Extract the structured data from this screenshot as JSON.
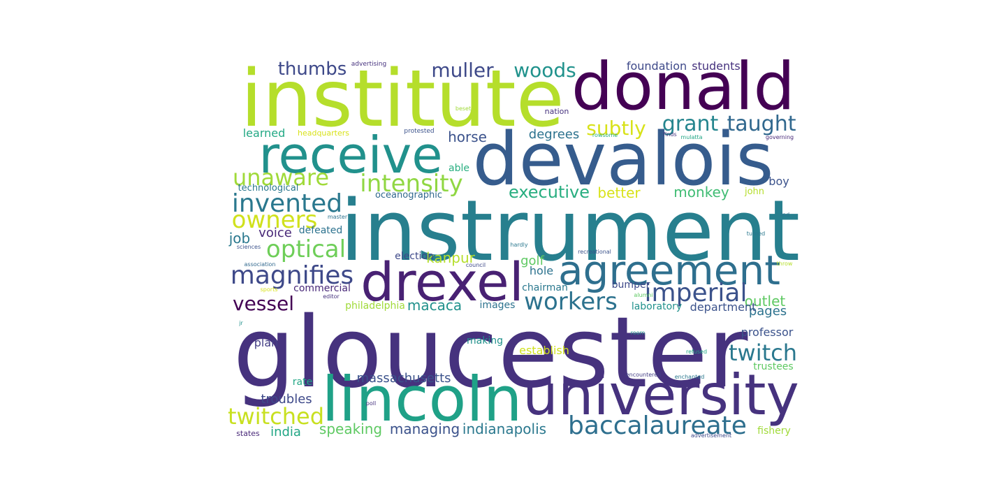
{
  "words": [
    {
      "text": "gloucester",
      "weight": 1.0,
      "color": "#46327e"
    },
    {
      "text": "instrument",
      "weight": 0.9,
      "color": "#277f8e"
    },
    {
      "text": "institute",
      "weight": 0.85,
      "color": "#b5de2b"
    },
    {
      "text": "devalois",
      "weight": 0.78,
      "color": "#365c8d"
    },
    {
      "text": "donald",
      "weight": 0.7,
      "color": "#440154"
    },
    {
      "text": "lincoln",
      "weight": 0.66,
      "color": "#1fa187"
    },
    {
      "text": "university",
      "weight": 0.6,
      "color": "#46327e"
    },
    {
      "text": "drexel",
      "weight": 0.58,
      "color": "#482173"
    },
    {
      "text": "receive",
      "weight": 0.56,
      "color": "#21918c"
    },
    {
      "text": "agreement",
      "weight": 0.46,
      "color": "#2e6f8e"
    },
    {
      "text": "baccalaureate",
      "weight": 0.36,
      "color": "#2e6f8e"
    },
    {
      "text": "magnifies",
      "weight": 0.33,
      "color": "#3e4989"
    },
    {
      "text": "imperial",
      "weight": 0.31,
      "color": "#3b528b"
    },
    {
      "text": "invented",
      "weight": 0.31,
      "color": "#2a788e"
    },
    {
      "text": "owners",
      "weight": 0.3,
      "color": "#d0e11c"
    },
    {
      "text": "optical",
      "weight": 0.3,
      "color": "#6ece58"
    },
    {
      "text": "workers",
      "weight": 0.3,
      "color": "#2c728e"
    },
    {
      "text": "twitched",
      "weight": 0.3,
      "color": "#c8e020"
    },
    {
      "text": "intensity",
      "weight": 0.3,
      "color": "#90d743"
    },
    {
      "text": "twitch",
      "weight": 0.29,
      "color": "#2a788e"
    },
    {
      "text": "unaware",
      "weight": 0.28,
      "color": "#a0da39"
    },
    {
      "text": "vessel",
      "weight": 0.27,
      "color": "#440154"
    },
    {
      "text": "taught",
      "weight": 0.26,
      "color": "#31688e"
    },
    {
      "text": "grant",
      "weight": 0.26,
      "color": "#25858e"
    },
    {
      "text": "subtly",
      "weight": 0.26,
      "color": "#d8e219"
    },
    {
      "text": "muller",
      "weight": 0.26,
      "color": "#3e4989"
    },
    {
      "text": "thumbs",
      "weight": 0.25,
      "color": "#3e4989"
    },
    {
      "text": "woods",
      "weight": 0.25,
      "color": "#20928c"
    },
    {
      "text": "executive",
      "weight": 0.23,
      "color": "#28ae80"
    },
    {
      "text": "macaca",
      "weight": 0.2,
      "color": "#21918c"
    },
    {
      "text": "managing",
      "weight": 0.19,
      "color": "#3b528b"
    },
    {
      "text": "indianapolis",
      "weight": 0.19,
      "color": "#2a788e"
    },
    {
      "text": "speaking",
      "weight": 0.18,
      "color": "#5ec962"
    },
    {
      "text": "kanpur",
      "weight": 0.18,
      "color": "#b5de2b"
    },
    {
      "text": "foundation",
      "weight": 0.16,
      "color": "#3e4989"
    },
    {
      "text": "outlet",
      "weight": 0.17,
      "color": "#5ec962"
    },
    {
      "text": "monkey",
      "weight": 0.17,
      "color": "#3fbc73"
    },
    {
      "text": "better",
      "weight": 0.17,
      "color": "#d8e219"
    },
    {
      "text": "horse",
      "weight": 0.17,
      "color": "#3b528b"
    },
    {
      "text": "job",
      "weight": 0.18,
      "color": "#2a788e"
    },
    {
      "text": "voice",
      "weight": 0.17,
      "color": "#482878"
    },
    {
      "text": "troubles",
      "weight": 0.16,
      "color": "#3e4989"
    },
    {
      "text": "massachusetts",
      "weight": 0.15,
      "color": "#3b528b"
    },
    {
      "text": "pages",
      "weight": 0.16,
      "color": "#2c728e"
    },
    {
      "text": "professor",
      "weight": 0.15,
      "color": "#3b528b"
    },
    {
      "text": "establish",
      "weight": 0.15,
      "color": "#d0e11c"
    },
    {
      "text": "golf",
      "weight": 0.16,
      "color": "#5ec962"
    },
    {
      "text": "degrees",
      "weight": 0.15,
      "color": "#2c728e"
    },
    {
      "text": "students",
      "weight": 0.14,
      "color": "#46327e"
    },
    {
      "text": "india",
      "weight": 0.15,
      "color": "#21a685"
    },
    {
      "text": "department",
      "weight": 0.14,
      "color": "#3b528b"
    },
    {
      "text": "boy",
      "weight": 0.15,
      "color": "#3b528b"
    },
    {
      "text": "plan",
      "weight": 0.14,
      "color": "#433e85"
    },
    {
      "text": "trustees",
      "weight": 0.13,
      "color": "#5ec962"
    },
    {
      "text": "chairman",
      "weight": 0.13,
      "color": "#2a788e"
    },
    {
      "text": "hole",
      "weight": 0.13,
      "color": "#2c728e"
    },
    {
      "text": "laboratory",
      "weight": 0.13,
      "color": "#21918c"
    },
    {
      "text": "fishery",
      "weight": 0.13,
      "color": "#a0da39"
    },
    {
      "text": "images",
      "weight": 0.13,
      "color": "#2c728e"
    },
    {
      "text": "making",
      "weight": 0.13,
      "color": "#21918c"
    },
    {
      "text": "learned",
      "weight": 0.13,
      "color": "#22a884"
    },
    {
      "text": "philadelphia",
      "weight": 0.13,
      "color": "#a0da39"
    },
    {
      "text": "commercial",
      "weight": 0.13,
      "color": "#482878"
    },
    {
      "text": "defeated",
      "weight": 0.13,
      "color": "#2c728e"
    },
    {
      "text": "election",
      "weight": 0.13,
      "color": "#3e4989"
    },
    {
      "text": "bumper",
      "weight": 0.12,
      "color": "#3e4989"
    },
    {
      "text": "able",
      "weight": 0.12,
      "color": "#28ae80"
    },
    {
      "text": "rate",
      "weight": 0.12,
      "color": "#21a685"
    },
    {
      "text": "technological",
      "weight": 0.12,
      "color": "#2a788e"
    },
    {
      "text": "oceanographic",
      "weight": 0.11,
      "color": "#31688e"
    },
    {
      "text": "john",
      "weight": 0.11,
      "color": "#b5de2b"
    },
    {
      "text": "headquarters",
      "weight": 0.1,
      "color": "#d8e219"
    },
    {
      "text": "nation",
      "weight": 0.09,
      "color": "#46327e"
    },
    {
      "text": "states",
      "weight": 0.09,
      "color": "#482878"
    },
    {
      "text": "protested",
      "weight": 0.08,
      "color": "#3b528b"
    },
    {
      "text": "advertising",
      "weight": 0.07,
      "color": "#46327e"
    },
    {
      "text": "beset",
      "weight": 0.07,
      "color": "#a0da39"
    },
    {
      "text": "master",
      "weight": 0.07,
      "color": "#2c728e"
    },
    {
      "text": "sciences",
      "weight": 0.07,
      "color": "#3b528b"
    },
    {
      "text": "association",
      "weight": 0.07,
      "color": "#31688e"
    },
    {
      "text": "sports",
      "weight": 0.07,
      "color": "#d8e219"
    },
    {
      "text": "editor",
      "weight": 0.07,
      "color": "#46327e"
    },
    {
      "text": "jr",
      "weight": 0.07,
      "color": "#21918c"
    },
    {
      "text": "hardly",
      "weight": 0.07,
      "color": "#2a788e"
    },
    {
      "text": "recreational",
      "weight": 0.07,
      "color": "#3b528b"
    },
    {
      "text": "council",
      "weight": 0.07,
      "color": "#3e4989"
    },
    {
      "text": "rowsome",
      "weight": 0.07,
      "color": "#28ae80"
    },
    {
      "text": "finds",
      "weight": 0.07,
      "color": "#46327e"
    },
    {
      "text": "mulatta",
      "weight": 0.07,
      "color": "#21a685"
    },
    {
      "text": "governing",
      "weight": 0.07,
      "color": "#482878"
    },
    {
      "text": "ind",
      "weight": 0.07,
      "color": "#2c728e"
    },
    {
      "text": "turned",
      "weight": 0.07,
      "color": "#2a788e"
    },
    {
      "text": "throw",
      "weight": 0.07,
      "color": "#b5de2b"
    },
    {
      "text": "alumni",
      "weight": 0.07,
      "color": "#5ec962"
    },
    {
      "text": "room",
      "weight": 0.07,
      "color": "#21918c"
    },
    {
      "text": "refused",
      "weight": 0.07,
      "color": "#22a884"
    },
    {
      "text": "encountered",
      "weight": 0.07,
      "color": "#433e85"
    },
    {
      "text": "enchanted",
      "weight": 0.07,
      "color": "#2a788e"
    },
    {
      "text": "advertisement",
      "weight": 0.07,
      "color": "#3e4989"
    },
    {
      "text": "poll",
      "weight": 0.07,
      "color": "#46327e"
    }
  ]
}
